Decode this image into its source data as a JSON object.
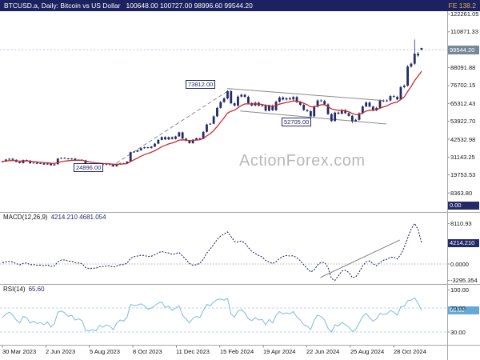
{
  "titlebar": {
    "symbol_text": "BTCUSD.a, Daily: Bitcoin vs US Dollar",
    "ohlc_text": "100648.00 100727.00 98996.60 99544.20",
    "right_label": "FE 138.2",
    "bg_color": "#1c2260",
    "right_label_color": "#e8b04a"
  },
  "watermark": "ActionForex.com",
  "price_axis": {
    "ticks": [
      "122261.05",
      "110871.33",
      "99481.60",
      "88091.88",
      "76702.15",
      "65312.43",
      "53922.70",
      "42532.98",
      "31143.25",
      "19753.53",
      "8363.80"
    ],
    "current_tag": "99544.20",
    "zero_tag": "0.00"
  },
  "time_axis": {
    "labels": [
      "30 Mar 2023",
      "2 Jun 2023",
      "5 Aug 2023",
      "8 Oct 2023",
      "11 Dec 2023",
      "15 Feb 2024",
      "19 Apr 2024",
      "22 Jun 2024",
      "25 Aug 2024",
      "28 Oct 2024"
    ]
  },
  "macd": {
    "label": "MACD(12,26,9)",
    "values_text": "4214.210 4681.054",
    "axis": [
      "8110.93",
      "0.0000",
      "-3295.354"
    ],
    "tag": "4214.210"
  },
  "rsi": {
    "label": "RSI(14)",
    "value_text": "65.60",
    "axis": [
      "100.00",
      "70.00",
      "30.00"
    ],
    "tag": "65.60"
  },
  "annotations": {
    "peak_label": "73812.00",
    "low_label": "24896.00",
    "mid_label": "52705.00"
  },
  "chart_data": [
    {
      "type": "candlestick",
      "title": "BTCUSD.a Daily - Bitcoin vs US Dollar",
      "x_tick_labels": [
        "30 Mar 2023",
        "2 Jun 2023",
        "5 Aug 2023",
        "8 Oct 2023",
        "11 Dec 2023",
        "15 Feb 2024",
        "19 Apr 2024",
        "22 Jun 2024",
        "25 Aug 2024",
        "28 Oct 2024"
      ],
      "point_interval_days": 5.1,
      "y_ticks": [
        122261.05,
        110871.33,
        99481.6,
        88091.88,
        76702.15,
        65312.43,
        53922.7,
        42532.98,
        31143.25,
        19753.53,
        8363.8
      ],
      "ylim": [
        0,
        125000
      ],
      "closes": [
        28400,
        29600,
        30100,
        29400,
        28100,
        27300,
        29300,
        28900,
        27200,
        27600,
        26900,
        27200,
        26400,
        27100,
        25900,
        26600,
        30200,
        30600,
        30300,
        29900,
        30200,
        29200,
        29400,
        29100,
        26100,
        26000,
        26100,
        25800,
        26600,
        26200,
        26600,
        26300,
        25300,
        26600,
        27200,
        27000,
        28300,
        34300,
        34600,
        35500,
        36800,
        37400,
        36900,
        37800,
        39700,
        42100,
        43900,
        42400,
        43800,
        42700,
        44300,
        46900,
        42900,
        41600,
        40000,
        42200,
        43100,
        42800,
        47200,
        51900,
        52400,
        57100,
        62500,
        66200,
        68500,
        73100,
        65400,
        63900,
        69700,
        70800,
        69500,
        65500,
        64000,
        65800,
        63900,
        64100,
        60700,
        63900,
        61000,
        66400,
        69100,
        67800,
        68600,
        67900,
        69400,
        66100,
        64400,
        61100,
        60400,
        57100,
        63300,
        67200,
        66900,
        64700,
        58500,
        54100,
        59500,
        58800,
        61100,
        59100,
        57400,
        54000,
        54900,
        59000,
        63400,
        65900,
        63300,
        60900,
        62500,
        67100,
        66700,
        67200,
        70000,
        69500,
        67900,
        75700,
        76600,
        88800,
        90600,
        97000,
        95800,
        99544.2
      ],
      "last_candle": {
        "open": 100648.0,
        "high": 100727.0,
        "low": 98996.6,
        "close": 99544.2
      },
      "wick_extremes": [
        {
          "index": 32,
          "low": 24896.0
        },
        {
          "index": 65,
          "high": 73812.0
        },
        {
          "index": 95,
          "low": 53500
        },
        {
          "index": 101,
          "low": 52705.0
        },
        {
          "index": 119,
          "high": 106000
        }
      ],
      "key_levels": {
        "peak": 73812.0,
        "low_2023": 24896.0,
        "low_sep_2024": 52705.0,
        "current": 99544.2
      },
      "trendlines": [
        {
          "name": "rising-support-dashed",
          "d1": 160,
          "v1": 25200,
          "d2": 331,
          "v2": 73000,
          "dashed": true
        },
        {
          "name": "channel-upper",
          "d1": 331,
          "v1": 74800,
          "d2": 560,
          "v2": 67200,
          "dashed": false
        },
        {
          "name": "channel-lower",
          "d1": 350,
          "v1": 60500,
          "d2": 565,
          "v2": 52200,
          "dashed": false
        }
      ],
      "candle_color": "#232b66",
      "ma_color": "#cc2a2a",
      "trendline_color": "#8a8a8a"
    },
    {
      "type": "line",
      "name": "MACD(12,26,9)",
      "current_values": [
        4214.21,
        4681.054
      ],
      "y_ticks": [
        8110.93,
        0.0,
        -3295.354
      ],
      "values": [
        250,
        420,
        520,
        380,
        80,
        -180,
        120,
        220,
        -150,
        -120,
        -260,
        -220,
        -340,
        -180,
        -480,
        -380,
        420,
        780,
        820,
        600,
        520,
        280,
        200,
        60,
        -680,
        -920,
        -860,
        -820,
        -560,
        -520,
        -400,
        -380,
        -620,
        -380,
        -150,
        -120,
        180,
        1150,
        1450,
        1600,
        1750,
        1700,
        1500,
        1550,
        1850,
        2250,
        2500,
        2300,
        2200,
        1950,
        2050,
        2300,
        1600,
        900,
        100,
        -250,
        -150,
        150,
        950,
        2200,
        3000,
        3900,
        4900,
        5600,
        6000,
        6400,
        5500,
        4500,
        4400,
        4600,
        4200,
        3300,
        2500,
        2100,
        1700,
        1400,
        700,
        400,
        100,
        450,
        1100,
        1500,
        1700,
        1600,
        1650,
        1250,
        650,
        -150,
        -900,
        -1600,
        -1200,
        -200,
        350,
        300,
        -700,
        -2900,
        -3295,
        -2400,
        -1400,
        -1250,
        -1700,
        -2700,
        -2600,
        -1600,
        -400,
        450,
        600,
        50,
        -350,
        250,
        750,
        950,
        1350,
        1350,
        1000,
        1900,
        3300,
        5200,
        7000,
        8110,
        6900,
        4214.21
      ],
      "trendline": {
        "d1": 468,
        "v1": -2700,
        "d2": 585,
        "v2": 4800
      },
      "color": "#232b66"
    },
    {
      "type": "line",
      "name": "RSI(14)",
      "current_value": 65.6,
      "levels": [
        70,
        30
      ],
      "y_ticks": [
        100,
        70,
        30
      ],
      "values": [
        54,
        60,
        63,
        58,
        50,
        45,
        56,
        54,
        45,
        48,
        44,
        46,
        42,
        47,
        38,
        44,
        63,
        65,
        62,
        56,
        58,
        50,
        52,
        49,
        33,
        32,
        34,
        32,
        41,
        38,
        42,
        40,
        34,
        45,
        50,
        48,
        55,
        76,
        74,
        75,
        77,
        74,
        68,
        70,
        74,
        78,
        80,
        71,
        73,
        66,
        70,
        74,
        58,
        52,
        45,
        53,
        56,
        54,
        66,
        76,
        74,
        80,
        84,
        85,
        83,
        86,
        60,
        55,
        65,
        67,
        62,
        52,
        49,
        54,
        50,
        51,
        42,
        51,
        45,
        58,
        64,
        60,
        62,
        60,
        64,
        55,
        50,
        42,
        40,
        34,
        50,
        58,
        56,
        50,
        36,
        30,
        42,
        40,
        46,
        42,
        38,
        31,
        34,
        45,
        56,
        61,
        54,
        48,
        52,
        61,
        59,
        60,
        66,
        63,
        58,
        72,
        73,
        82,
        83,
        87,
        78,
        65.6
      ],
      "color": "#7fb9e6",
      "level_line_color": "#b5d7ee"
    }
  ]
}
